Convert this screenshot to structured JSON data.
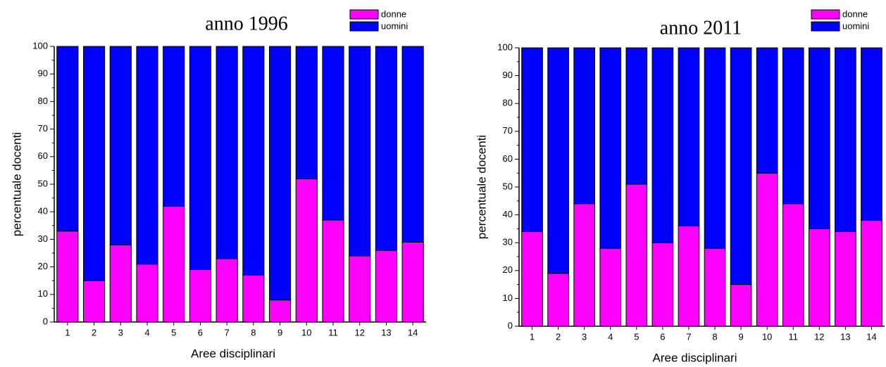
{
  "chart_data": [
    {
      "type": "stacked_bar",
      "title": "anno 1996",
      "x_label": "Aree disciplinari",
      "y_label": "percentuale docenti",
      "categories": [
        "1",
        "2",
        "3",
        "4",
        "5",
        "6",
        "7",
        "8",
        "9",
        "10",
        "11",
        "12",
        "13",
        "14"
      ],
      "series": [
        {
          "name": "donne",
          "color": "#ff00ff",
          "values": [
            33,
            15,
            28,
            21,
            42,
            19,
            23,
            17,
            8,
            52,
            37,
            24,
            26,
            29
          ]
        },
        {
          "name": "uomini",
          "color": "#0000ff",
          "values": [
            67,
            85,
            72,
            79,
            58,
            81,
            77,
            83,
            92,
            48,
            63,
            76,
            74,
            71
          ]
        }
      ],
      "ylim": [
        0,
        100
      ],
      "yticks": [
        0,
        10,
        20,
        30,
        40,
        50,
        60,
        70,
        80,
        90,
        100
      ]
    },
    {
      "type": "stacked_bar",
      "title": "anno 2011",
      "x_label": "Aree disciplinari",
      "y_label": "percentuale docenti",
      "categories": [
        "1",
        "2",
        "3",
        "4",
        "5",
        "6",
        "7",
        "8",
        "9",
        "10",
        "11",
        "12",
        "13",
        "14"
      ],
      "series": [
        {
          "name": "donne",
          "color": "#ff00ff",
          "values": [
            34,
            19,
            44,
            28,
            51,
            30,
            36,
            28,
            15,
            55,
            44,
            35,
            34,
            38
          ]
        },
        {
          "name": "uomini",
          "color": "#0000ff",
          "values": [
            66,
            81,
            56,
            72,
            49,
            70,
            64,
            72,
            85,
            45,
            56,
            65,
            66,
            62
          ]
        }
      ],
      "ylim": [
        0,
        100
      ],
      "yticks": [
        0,
        10,
        20,
        30,
        40,
        50,
        60,
        70,
        80,
        90,
        100
      ]
    }
  ]
}
